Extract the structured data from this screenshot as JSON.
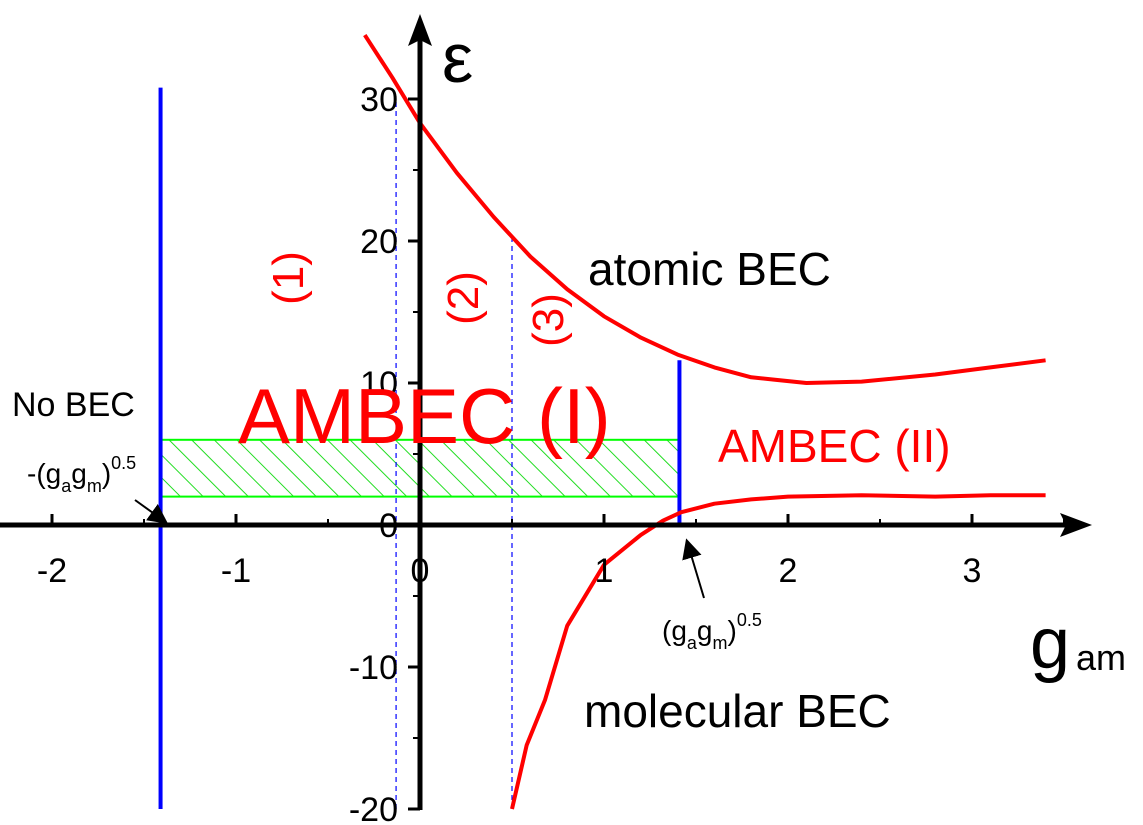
{
  "chart_data": {
    "type": "line",
    "xlabel": "g",
    "xlabel_sub": "am",
    "ylabel": "ε",
    "xlim": [
      -2.0,
      3.6
    ],
    "ylim": [
      -20,
      35
    ],
    "x_ticks": [
      {
        "value": -2,
        "label": "-2"
      },
      {
        "value": -1,
        "label": "-1"
      },
      {
        "value": 0,
        "label": "0"
      },
      {
        "value": 1,
        "label": "1"
      },
      {
        "value": 2,
        "label": "2"
      },
      {
        "value": 3,
        "label": "3"
      }
    ],
    "y_ticks": [
      {
        "value": 30,
        "label": "30"
      },
      {
        "value": 20,
        "label": "20"
      },
      {
        "value": 10,
        "label": "10"
      },
      {
        "value": 0,
        "label": "0"
      },
      {
        "value": -10,
        "label": "-10"
      },
      {
        "value": -20,
        "label": "-20"
      }
    ],
    "series": [
      {
        "role": "upper-boundary",
        "color": "#ff0000",
        "points": [
          [
            -0.3,
            34.5
          ],
          [
            -0.15,
            31.5
          ],
          [
            0.0,
            28.3
          ],
          [
            0.2,
            24.8
          ],
          [
            0.4,
            21.7
          ],
          [
            0.6,
            18.9
          ],
          [
            0.8,
            16.6
          ],
          [
            1.0,
            14.7
          ],
          [
            1.2,
            13.2
          ],
          [
            1.4,
            12.0
          ],
          [
            1.6,
            11.1
          ],
          [
            1.8,
            10.4
          ],
          [
            2.1,
            10.0
          ],
          [
            2.4,
            10.1
          ],
          [
            2.8,
            10.6
          ],
          [
            3.1,
            11.1
          ],
          [
            3.4,
            11.6
          ]
        ]
      },
      {
        "role": "lower-boundary",
        "color": "#ff0000",
        "points": [
          [
            0.5,
            -20
          ],
          [
            0.58,
            -15.5
          ],
          [
            0.68,
            -12.3
          ],
          [
            0.8,
            -7.1
          ],
          [
            1.0,
            -2.8
          ],
          [
            1.2,
            -0.7
          ],
          [
            1.32,
            0.3
          ],
          [
            1.42,
            0.9
          ],
          [
            1.6,
            1.5
          ],
          [
            1.8,
            1.8
          ],
          [
            2.0,
            2.0
          ],
          [
            2.4,
            2.1
          ],
          [
            2.8,
            2.0
          ],
          [
            3.1,
            2.1
          ],
          [
            3.4,
            2.1
          ]
        ]
      }
    ],
    "vertical_lines": [
      {
        "x": -1.41,
        "y_from": -20,
        "y_to": 30.8,
        "color": "#0000ff",
        "style": "solid"
      },
      {
        "x": 1.41,
        "y_from": 0,
        "y_to": 11.6,
        "color": "#0000ff",
        "style": "solid"
      },
      {
        "x": -0.13,
        "y_from": -20,
        "y_to": 30,
        "color": "#0000ff",
        "style": "dashed"
      },
      {
        "x": 0.5,
        "y_from": -20,
        "y_to": 20.5,
        "color": "#0000ff",
        "style": "dashed"
      }
    ],
    "hatched_region": {
      "x_from": -1.41,
      "x_to": 1.41,
      "y_from": 2.0,
      "y_to": 6.0,
      "color": "#00ff00"
    },
    "annotations": {
      "atomic": "atomic BEC",
      "molecular": "molecular BEC",
      "ambec1": "AMBEC (I)",
      "ambec2": "AMBEC (II)",
      "nobec": "No BEC",
      "region1": "(1)",
      "region2": "(2)",
      "region3": "(3)",
      "neg_crit": {
        "prefix": "-(g",
        "sub_a": "a",
        "mid": "g",
        "sub_m": "m",
        "suffix": ")",
        "sup": "0.5"
      },
      "pos_crit": {
        "prefix": "(g",
        "sub_a": "a",
        "mid": "g",
        "sub_m": "m",
        "suffix": ")",
        "sup": "0.5"
      }
    }
  }
}
